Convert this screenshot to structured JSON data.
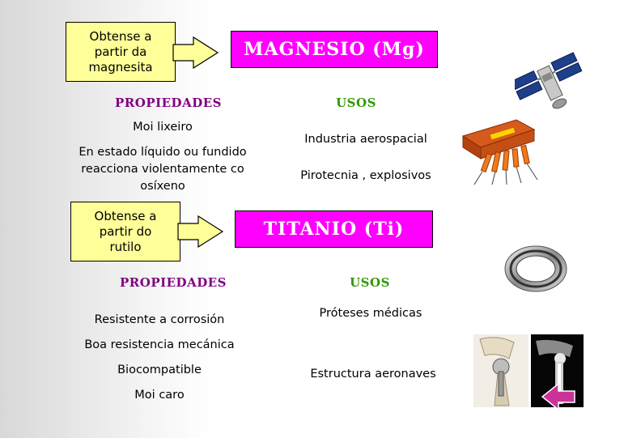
{
  "magnesio": {
    "callout": "Obtense a\npartir da\nmagnesita",
    "title": "MAGNESIO (Mg)",
    "propiedades_heading": "PROPIEDADES",
    "usos_heading": "USOS",
    "propiedades": [
      "Moi lixeiro",
      "En estado líquido ou fundido\nreacciona violentamente co\nosíxeno"
    ],
    "usos": [
      "Industria aerospacial",
      "Pirotecnia , explosivos"
    ]
  },
  "titanio": {
    "callout": "Obtense a\npartir do\nrutilo",
    "title": "TITANIO (Ti)",
    "propiedades_heading": "PROPIEDADES",
    "usos_heading": "USOS",
    "propiedades": [
      "Resistente a corrosión",
      "Boa resistencia mecánica",
      "Biocompatible",
      "Moi caro"
    ],
    "usos": [
      "Próteses médicas",
      "Estructura aeronaves"
    ]
  },
  "images": [
    "satellite-image",
    "fireworks-image",
    "titanium-ring-image",
    "hip-prosthesis-image",
    "xray-image"
  ],
  "colors": {
    "title_bg": "#ff00ff",
    "callout_bg": "#ffff99",
    "prop_heading": "#800080",
    "usos_heading": "#339900",
    "nav_arrow": "#cc3399"
  }
}
